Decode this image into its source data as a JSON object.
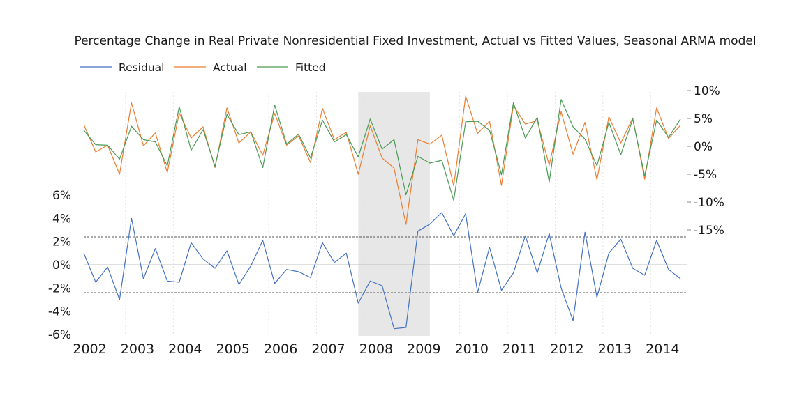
{
  "chart_data": {
    "type": "line",
    "title": "Percentage Change in Real Private Nonresidential Fixed Investment, Actual vs Fitted Values, Seasonal ARMA model",
    "legend_position": "top-left",
    "x_tick_labels": [
      "2002",
      "2003",
      "2004",
      "2005",
      "2006",
      "2007",
      "2008",
      "2009",
      "2010",
      "2011",
      "2012",
      "2013",
      "2014"
    ],
    "shaded_region": {
      "start": 2007.75,
      "end": 2009.25
    },
    "right_axis": {
      "tick_labels": [
        "10%",
        "5%",
        "0%",
        "-5%",
        "-10%",
        "-15%"
      ],
      "ticks": [
        10,
        5,
        0,
        -5,
        -10,
        -15
      ],
      "ylim": [
        -15,
        10
      ]
    },
    "left_axis": {
      "tick_labels": [
        "6%",
        "4%",
        "2%",
        "0%",
        "-2%",
        "-4%",
        "-6%"
      ],
      "ticks": [
        6,
        4,
        2,
        0,
        -2,
        -4,
        -6
      ],
      "ylim": [
        -6,
        6
      ],
      "band_lines": [
        2.4,
        -2.4
      ]
    },
    "series": [
      {
        "name": "Residual",
        "axis": "left",
        "color": "#4472c4",
        "values": [
          1.0,
          -1.5,
          -0.2,
          -3.0,
          4.0,
          -1.2,
          1.4,
          -1.4,
          -1.5,
          1.9,
          0.5,
          -0.3,
          1.2,
          -1.7,
          -0.1,
          2.1,
          -1.6,
          -0.4,
          -0.6,
          -1.1,
          1.9,
          0.2,
          1.0,
          -3.3,
          -1.4,
          -1.8,
          -5.5,
          -5.4,
          2.9,
          3.5,
          4.5,
          2.5,
          4.4,
          -2.4,
          1.5,
          -2.2,
          -0.7,
          2.5,
          -0.7,
          2.7,
          -2.0,
          -4.8,
          2.8,
          -2.8,
          1.0,
          2.2,
          -0.3,
          -0.9,
          2.1,
          -0.4,
          -1.2
        ]
      },
      {
        "name": "Actual",
        "axis": "right",
        "color": "#ed7d31",
        "values": [
          3.9,
          -1.0,
          0.2,
          -5.0,
          7.8,
          0.1,
          2.4,
          -4.7,
          6.0,
          1.5,
          3.5,
          -3.8,
          6.9,
          0.6,
          2.6,
          -1.6,
          5.9,
          0.2,
          1.9,
          -2.9,
          6.8,
          1.2,
          2.5,
          -5.0,
          3.7,
          -2.1,
          -3.9,
          -14.0,
          1.2,
          0.4,
          2.0,
          -7.1,
          9.0,
          2.3,
          4.5,
          -7.0,
          7.3,
          4.0,
          4.6,
          -3.4,
          6.2,
          -1.4,
          4.3,
          -6.0,
          5.3,
          0.6,
          5.1,
          -5.9,
          6.9,
          1.4,
          3.8
        ]
      },
      {
        "name": "Fitted",
        "axis": "right",
        "color": "#4a9a55",
        "values": [
          2.9,
          0.3,
          0.2,
          -2.3,
          3.6,
          1.2,
          0.8,
          -3.5,
          7.1,
          -0.7,
          3.0,
          -3.6,
          5.7,
          2.1,
          2.6,
          -3.8,
          7.4,
          0.4,
          2.2,
          -2.1,
          4.7,
          0.8,
          2.1,
          -1.9,
          4.9,
          -0.5,
          1.2,
          -8.7,
          -1.8,
          -3.0,
          -2.5,
          -9.7,
          4.4,
          4.5,
          2.9,
          -5.1,
          7.8,
          1.5,
          5.2,
          -6.4,
          8.4,
          3.5,
          1.3,
          -3.5,
          4.3,
          -1.5,
          4.9,
          -5.3,
          4.7,
          1.6,
          4.9
        ]
      }
    ]
  }
}
